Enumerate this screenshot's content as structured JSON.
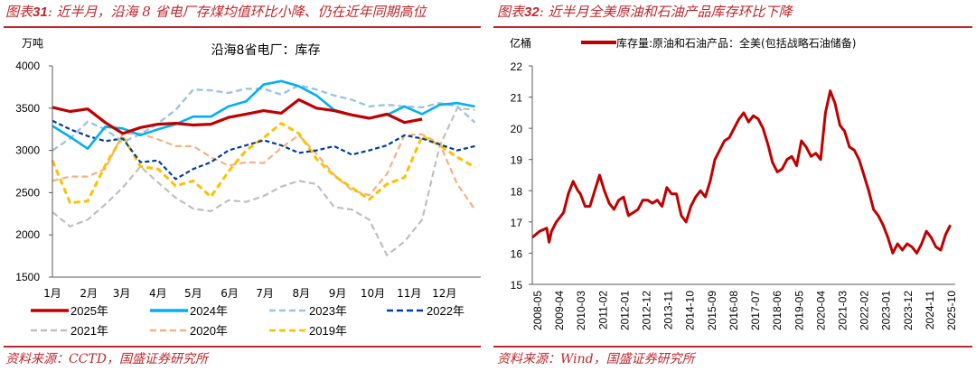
{
  "left_panel": {
    "figure_title_prefix": "图表",
    "figure_number": "31",
    "figure_title_text": ": 近半月，沿海 8 省电厂存煤均值环比小降、仍在近年同期高位",
    "source_text": "资料来源：CCTD，国盛证券研究所"
  },
  "right_panel": {
    "figure_title_prefix": "图表",
    "figure_number": "32",
    "figure_title_text": ": 近半月全美原油和石油产品库存环比下降",
    "source_text": "资料来源：Wind，国盛证券研究所"
  },
  "colors": {
    "accent_red": "#c0272d",
    "s2025": "#c00000",
    "s2024": "#00b0f0",
    "s2023": "#9dc3e6",
    "s2022": "#003e9a",
    "s2021": "#bfbfbf",
    "s2020": "#f4b183",
    "s2019": "#ffc000",
    "us_stock": "#c00000"
  },
  "chart_data": [
    {
      "type": "line",
      "title": "沿海8省电厂：库存",
      "ylabel": "万吨",
      "xlabel": "",
      "ylim": [
        1500,
        4000
      ],
      "yticks": [
        "1500",
        "2000",
        "2500",
        "3000",
        "3500",
        "4000"
      ],
      "ytick_values": [
        1500,
        2000,
        2500,
        3000,
        3500,
        4000
      ],
      "categories": [
        "1月",
        "2月",
        "3月",
        "4月",
        "5月",
        "6月",
        "7月",
        "8月",
        "9月",
        "10月",
        "11月",
        "12月"
      ],
      "x_unit": "day of year",
      "x": [
        0,
        15,
        30,
        45,
        60,
        75,
        90,
        105,
        120,
        135,
        150,
        165,
        180,
        195,
        210,
        225,
        240,
        255,
        270,
        285,
        300,
        315,
        330,
        345,
        360
      ],
      "legend_position": "bottom",
      "grid": false,
      "series": [
        {
          "name": "2025年",
          "style": "solid",
          "values": [
            3510,
            3460,
            3490,
            3330,
            3200,
            3270,
            3310,
            3320,
            3300,
            3310,
            3390,
            3430,
            3470,
            3440,
            3600,
            3500,
            3470,
            3420,
            3380,
            3430,
            3330,
            3370,
            null,
            null,
            null
          ]
        },
        {
          "name": "2024年",
          "style": "solid",
          "values": [
            3290,
            3160,
            3020,
            3280,
            3260,
            3180,
            3250,
            3310,
            3400,
            3400,
            3520,
            3580,
            3780,
            3820,
            3760,
            3650,
            3480,
            3420,
            3380,
            3420,
            3520,
            3430,
            3540,
            3560,
            3520
          ]
        },
        {
          "name": "2023年",
          "style": "dash",
          "values": [
            3000,
            3140,
            3340,
            3250,
            3100,
            3190,
            3320,
            3480,
            3720,
            3710,
            3680,
            3730,
            3730,
            3660,
            3770,
            3720,
            3650,
            3600,
            3520,
            3540,
            3520,
            3510,
            3560,
            3520,
            3330
          ]
        },
        {
          "name": "2022年",
          "style": "dash",
          "values": [
            3350,
            3250,
            3170,
            3110,
            3140,
            2860,
            2880,
            2660,
            2780,
            2860,
            3000,
            3060,
            3120,
            3060,
            2970,
            3000,
            3050,
            2950,
            3000,
            3060,
            3180,
            3140,
            3070,
            3000,
            3050
          ]
        },
        {
          "name": "2021年",
          "style": "dash",
          "values": [
            2270,
            2100,
            2180,
            2360,
            2560,
            2810,
            2620,
            2440,
            2310,
            2280,
            2410,
            2390,
            2460,
            2570,
            2640,
            2600,
            2330,
            2300,
            2180,
            1760,
            1920,
            2180,
            3050,
            3500,
            3480
          ]
        },
        {
          "name": "2020年",
          "style": "dash",
          "values": [
            2640,
            2690,
            2690,
            2780,
            3200,
            3200,
            3130,
            3050,
            3050,
            2920,
            2820,
            2860,
            2850,
            3030,
            3180,
            2960,
            2710,
            2530,
            2470,
            2720,
            3180,
            3190,
            3080,
            2600,
            2300
          ]
        },
        {
          "name": "2019年",
          "style": "dash",
          "values": [
            2880,
            2380,
            2400,
            2820,
            3170,
            2810,
            2780,
            2580,
            2640,
            2450,
            2750,
            3000,
            3150,
            3320,
            3200,
            2900,
            2700,
            2560,
            2420,
            2600,
            2680,
            3170,
            3060,
            2920,
            2800
          ]
        }
      ]
    },
    {
      "type": "line",
      "title": "",
      "ylabel": "亿桶",
      "xlabel": "",
      "ylim": [
        15,
        22
      ],
      "yticks": [
        "15",
        "16",
        "17",
        "18",
        "19",
        "20",
        "21",
        "22"
      ],
      "ytick_values": [
        15,
        16,
        17,
        18,
        19,
        20,
        21,
        22
      ],
      "categories": [
        "2008-05",
        "2009-04",
        "2010-03",
        "2011-02",
        "2012-01",
        "2012-12",
        "2013-11",
        "2014-10",
        "2015-09",
        "2016-08",
        "2017-07",
        "2018-06",
        "2019-05",
        "2020-04",
        "2021-03",
        "2022-02",
        "2023-01",
        "2023-12",
        "2024-11",
        "2025-10"
      ],
      "legend_position": "top",
      "grid": false,
      "series": [
        {
          "name": "库存量:原油和石油产品：全美(包括战略石油储备)",
          "x_unit": "years since 2008-05",
          "x": [
            0,
            0.3,
            0.6,
            0.7,
            0.8,
            1.0,
            1.3,
            1.5,
            1.7,
            1.9,
            2.0,
            2.2,
            2.4,
            2.6,
            2.8,
            3.0,
            3.2,
            3.4,
            3.6,
            3.8,
            4.0,
            4.2,
            4.4,
            4.6,
            4.8,
            5.0,
            5.2,
            5.4,
            5.6,
            5.8,
            6.0,
            6.2,
            6.4,
            6.6,
            6.8,
            7.0,
            7.2,
            7.4,
            7.6,
            7.8,
            8.0,
            8.2,
            8.4,
            8.6,
            8.8,
            9.0,
            9.2,
            9.4,
            9.6,
            9.8,
            10.0,
            10.2,
            10.4,
            10.6,
            10.8,
            11.0,
            11.2,
            11.4,
            11.6,
            11.8,
            12.0,
            12.2,
            12.4,
            12.6,
            12.8,
            13.0,
            13.2,
            13.4,
            13.6,
            13.8,
            14.0,
            14.2,
            14.4,
            14.6,
            14.8,
            15.0,
            15.2,
            15.4,
            15.6,
            15.8,
            16.0,
            16.2,
            16.4,
            16.6,
            16.8,
            17.0,
            17.2,
            17.4
          ],
          "values": [
            16.5,
            16.7,
            16.8,
            16.35,
            16.7,
            17.0,
            17.3,
            17.9,
            18.3,
            18.0,
            17.9,
            17.5,
            17.5,
            18.0,
            18.5,
            18.0,
            17.6,
            17.4,
            17.7,
            17.8,
            17.2,
            17.3,
            17.4,
            17.7,
            17.7,
            17.6,
            17.7,
            17.5,
            18.1,
            17.9,
            17.9,
            17.2,
            17.0,
            17.5,
            17.8,
            18.0,
            17.8,
            18.3,
            19.0,
            19.3,
            19.6,
            19.7,
            20.0,
            20.3,
            20.5,
            20.2,
            20.4,
            20.3,
            20.0,
            19.5,
            18.9,
            18.6,
            18.7,
            19.0,
            19.1,
            18.8,
            19.6,
            19.4,
            19.1,
            19.2,
            19.0,
            20.5,
            21.2,
            20.8,
            20.1,
            19.9,
            19.4,
            19.3,
            19.0,
            18.5,
            18.0,
            17.4,
            17.2,
            16.9,
            16.5,
            16.0,
            16.3,
            16.1,
            16.3,
            16.2,
            16.0,
            16.3,
            16.7,
            16.5,
            16.2,
            16.1,
            16.6,
            16.9
          ]
        }
      ]
    }
  ]
}
